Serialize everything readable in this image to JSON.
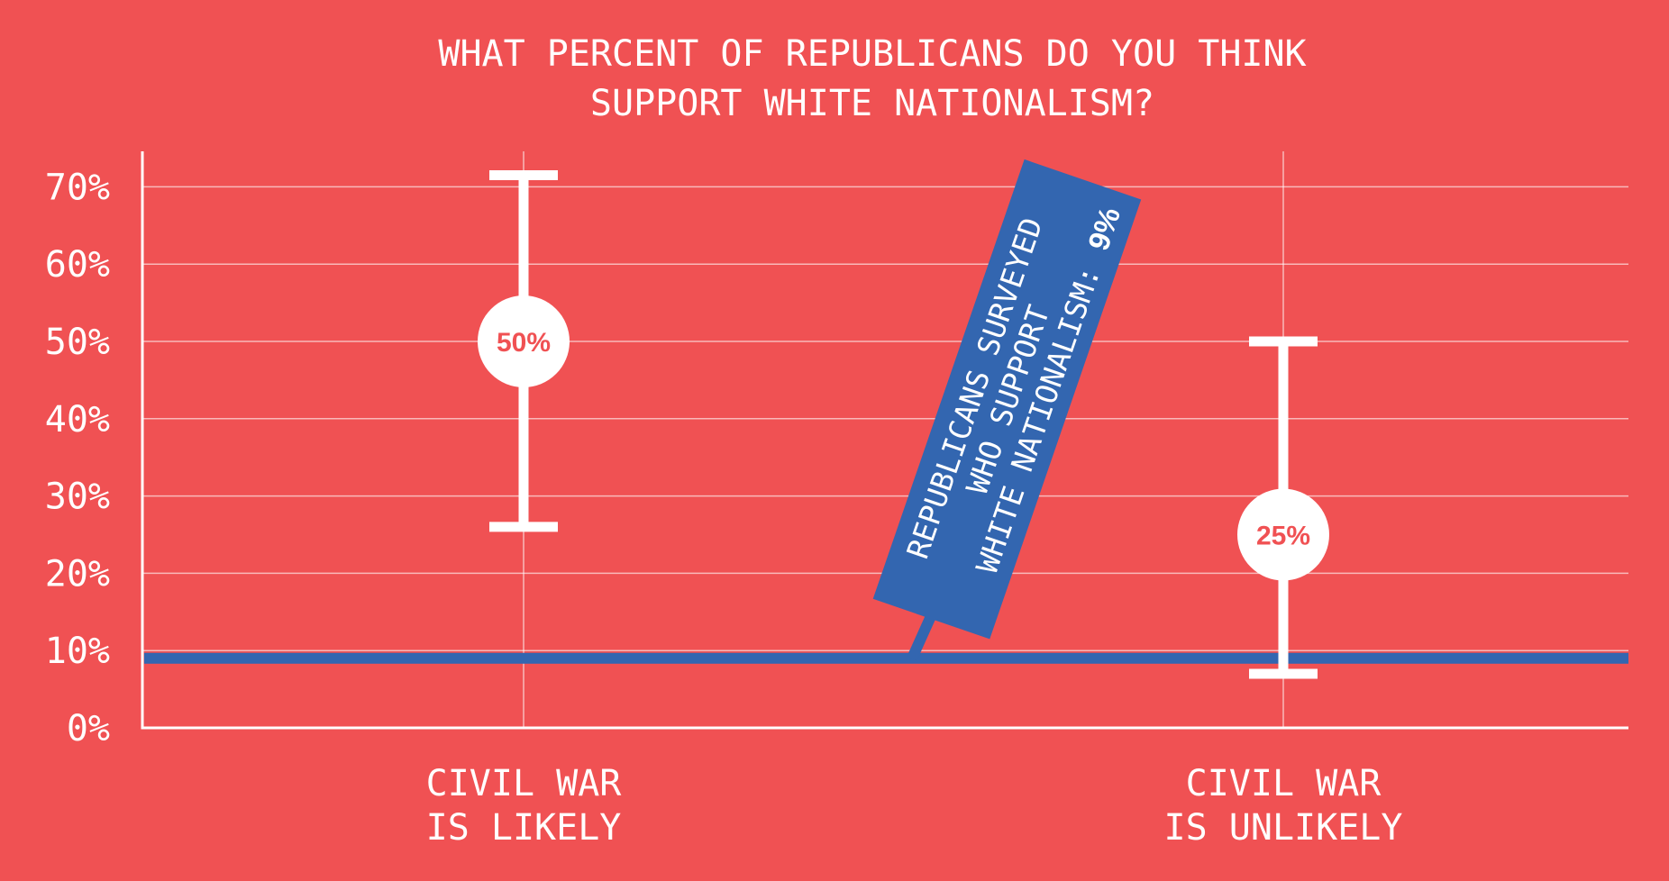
{
  "chart_data": {
    "type": "errorbar",
    "title_lines": [
      "WHAT PERCENT OF REPUBLICANS DO YOU THINK",
      "SUPPORT WHITE NATIONALISM?"
    ],
    "categories": [
      {
        "lines": [
          "CIVIL WAR",
          "IS LIKELY"
        ],
        "value": 50,
        "low": 26,
        "high": 71.5,
        "label": "50%"
      },
      {
        "lines": [
          "CIVIL WAR",
          "IS UNLIKELY"
        ],
        "value": 25,
        "low": 7,
        "high": 50,
        "label": "25%"
      }
    ],
    "yticks": [
      "0%",
      "10%",
      "20%",
      "30%",
      "40%",
      "50%",
      "60%",
      "70%"
    ],
    "ytick_values": [
      0,
      10,
      20,
      30,
      40,
      50,
      60,
      70
    ],
    "ylim": [
      0,
      74
    ],
    "grid": true,
    "reference_line": {
      "value": 9,
      "label_lines": [
        "REPUBLICANS SURVEYED",
        "WHO SUPPORT",
        "WHITE NATIONALISM:"
      ],
      "value_label": "9%"
    },
    "colors": {
      "background": "#F05153",
      "reference": "#3366B0",
      "marks": "#FFFFFF"
    }
  }
}
